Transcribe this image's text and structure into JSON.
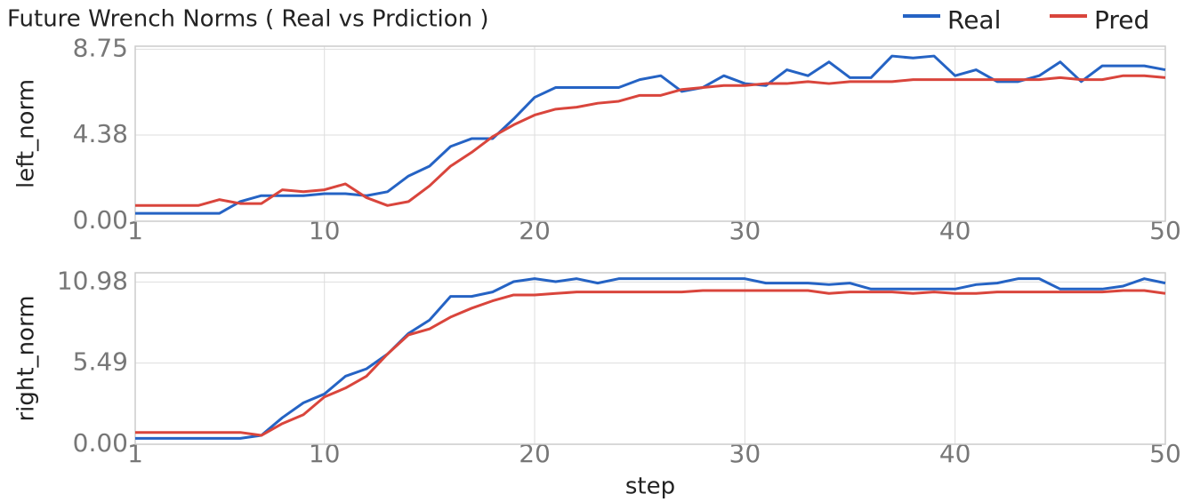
{
  "chart_data": [
    {
      "type": "line",
      "title": "Future Wrench Norms ( Real vs Prdiction )",
      "ylabel": "left_norm",
      "x": [
        1,
        2,
        3,
        4,
        5,
        6,
        7,
        8,
        9,
        10,
        11,
        12,
        13,
        14,
        15,
        16,
        17,
        18,
        19,
        20,
        21,
        22,
        23,
        24,
        25,
        26,
        27,
        28,
        29,
        30,
        31,
        32,
        33,
        34,
        35,
        36,
        37,
        38,
        39,
        40,
        41,
        42,
        43,
        44,
        45,
        46,
        47,
        48,
        49,
        50
      ],
      "xlim": [
        1,
        50
      ],
      "xticks": [
        1,
        10,
        20,
        30,
        40,
        50
      ],
      "ylim": [
        0,
        8.9
      ],
      "yticks": [
        {
          "value": 0,
          "label": "0.00"
        },
        4.38,
        8.75
      ],
      "grid": true,
      "series": [
        {
          "name": "Real",
          "color": "#2563c4",
          "values": [
            0.4,
            0.4,
            0.4,
            0.4,
            0.4,
            1.0,
            1.3,
            1.3,
            1.3,
            1.4,
            1.4,
            1.3,
            1.5,
            2.3,
            2.8,
            3.8,
            4.2,
            4.2,
            5.2,
            6.3,
            6.8,
            6.8,
            6.8,
            6.8,
            7.2,
            7.4,
            6.6,
            6.8,
            7.4,
            7.0,
            6.9,
            7.7,
            7.4,
            8.1,
            7.3,
            7.3,
            8.4,
            8.3,
            8.4,
            7.4,
            7.7,
            7.1,
            7.1,
            7.4,
            8.1,
            7.1,
            7.9,
            7.9,
            7.9,
            7.7
          ]
        },
        {
          "name": "Pred",
          "color": "#d9453c",
          "values": [
            0.8,
            0.8,
            0.8,
            0.8,
            1.1,
            0.9,
            0.9,
            1.6,
            1.5,
            1.6,
            1.9,
            1.2,
            0.8,
            1.0,
            1.8,
            2.8,
            3.5,
            4.3,
            4.9,
            5.4,
            5.7,
            5.8,
            6.0,
            6.1,
            6.4,
            6.4,
            6.7,
            6.8,
            6.9,
            6.9,
            7.0,
            7.0,
            7.1,
            7.0,
            7.1,
            7.1,
            7.1,
            7.2,
            7.2,
            7.2,
            7.2,
            7.2,
            7.2,
            7.2,
            7.3,
            7.2,
            7.2,
            7.4,
            7.4,
            7.3
          ]
        }
      ]
    },
    {
      "type": "line",
      "ylabel": "right_norm",
      "xlabel": "step",
      "x": [
        1,
        2,
        3,
        4,
        5,
        6,
        7,
        8,
        9,
        10,
        11,
        12,
        13,
        14,
        15,
        16,
        17,
        18,
        19,
        20,
        21,
        22,
        23,
        24,
        25,
        26,
        27,
        28,
        29,
        30,
        31,
        32,
        33,
        34,
        35,
        36,
        37,
        38,
        39,
        40,
        41,
        42,
        43,
        44,
        45,
        46,
        47,
        48,
        49,
        50
      ],
      "xlim": [
        1,
        50
      ],
      "xticks": [
        1,
        10,
        20,
        30,
        40,
        50
      ],
      "ylim": [
        0,
        11.6
      ],
      "yticks": [
        {
          "value": 0,
          "label": "0.00"
        },
        5.49,
        10.98
      ],
      "grid": true,
      "series": [
        {
          "color": "#2563c4",
          "values": [
            0.4,
            0.4,
            0.4,
            0.4,
            0.4,
            0.4,
            0.6,
            1.8,
            2.8,
            3.4,
            4.6,
            5.1,
            6.1,
            7.5,
            8.4,
            10.0,
            10.0,
            10.3,
            11.0,
            11.2,
            11.0,
            11.2,
            10.9,
            11.2,
            11.2,
            11.2,
            11.2,
            11.2,
            11.2,
            11.2,
            10.9,
            10.9,
            10.9,
            10.8,
            10.9,
            10.5,
            10.5,
            10.5,
            10.5,
            10.5,
            10.8,
            10.9,
            11.2,
            11.2,
            10.5,
            10.5,
            10.5,
            10.7,
            11.2,
            10.9
          ]
        },
        {
          "color": "#d9453c",
          "values": [
            0.8,
            0.8,
            0.8,
            0.8,
            0.8,
            0.8,
            0.6,
            1.4,
            2.0,
            3.2,
            3.8,
            4.6,
            6.1,
            7.4,
            7.8,
            8.6,
            9.2,
            9.7,
            10.1,
            10.1,
            10.2,
            10.3,
            10.3,
            10.3,
            10.3,
            10.3,
            10.3,
            10.4,
            10.4,
            10.4,
            10.4,
            10.4,
            10.4,
            10.2,
            10.3,
            10.3,
            10.3,
            10.2,
            10.3,
            10.2,
            10.2,
            10.3,
            10.3,
            10.3,
            10.3,
            10.3,
            10.3,
            10.4,
            10.4,
            10.2
          ]
        }
      ]
    }
  ]
}
